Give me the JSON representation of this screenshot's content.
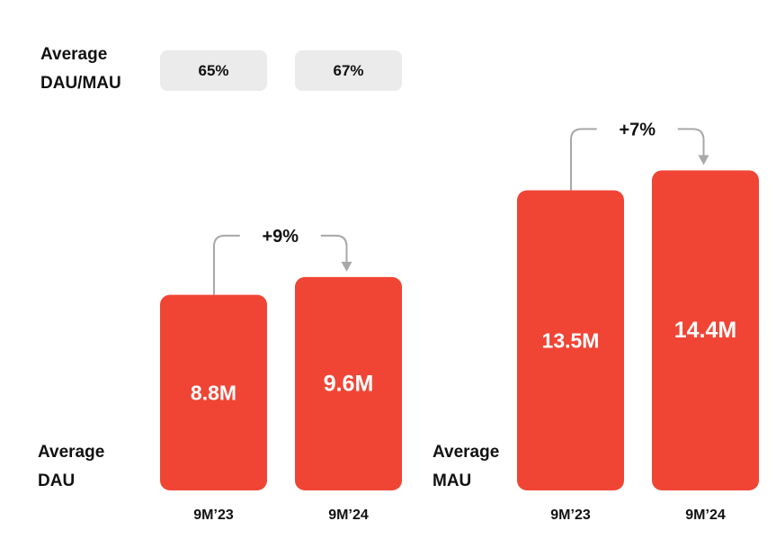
{
  "dau_mau": {
    "label_line1": "Average",
    "label_line2": "DAU/MAU",
    "values": [
      "65%",
      "67%"
    ]
  },
  "chart_data": [
    {
      "type": "bar",
      "ylabel_line1": "Average",
      "ylabel_line2": "DAU",
      "categories": [
        "9M’23",
        "9M’24"
      ],
      "values": [
        8.8,
        9.6
      ],
      "value_labels": [
        "8.8M",
        "9.6M"
      ],
      "change_label": "+9%",
      "color": "#f04535"
    },
    {
      "type": "bar",
      "ylabel_line1": "Average",
      "ylabel_line2": "MAU",
      "categories": [
        "9M’23",
        "9M’24"
      ],
      "values": [
        13.5,
        14.4
      ],
      "value_labels": [
        "13.5M",
        "14.4M"
      ],
      "change_label": "+7%",
      "color": "#f04535"
    }
  ]
}
